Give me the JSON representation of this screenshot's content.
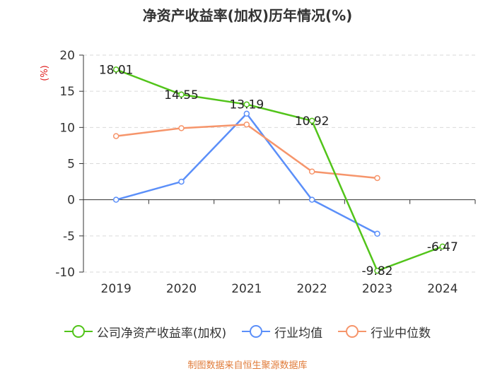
{
  "chart_data": {
    "type": "line",
    "title": "净资产收益率(加权)历年情况(%)",
    "ylabel": "(%)",
    "categories": [
      "2019",
      "2020",
      "2021",
      "2022",
      "2023",
      "2024"
    ],
    "ylim": [
      -10,
      20
    ],
    "yticks": [
      20,
      15,
      10,
      5,
      0,
      -5,
      -10
    ],
    "ytick_labels": [
      "20",
      "15",
      "10",
      "5",
      "0",
      "-5",
      "-10"
    ],
    "grid": true,
    "legend_position": "bottom",
    "series": [
      {
        "name": "公司净资产收益率(加权)",
        "color": "#52c41a",
        "values": [
          18.01,
          14.55,
          13.19,
          10.92,
          -9.82,
          -6.47
        ],
        "labels": [
          "18.01",
          "14.55",
          "13.19",
          "10.92",
          "-9.82",
          "-6.47"
        ]
      },
      {
        "name": "行业均值",
        "color": "#5b8ff9",
        "values": [
          0.0,
          2.5,
          11.9,
          0.0,
          -4.7,
          null
        ],
        "labels": []
      },
      {
        "name": "行业中位数",
        "color": "#f6956b",
        "values": [
          8.8,
          9.9,
          10.4,
          3.9,
          3.0,
          null
        ],
        "labels": []
      }
    ]
  },
  "source": "制图数据来自恒生聚源数据库"
}
